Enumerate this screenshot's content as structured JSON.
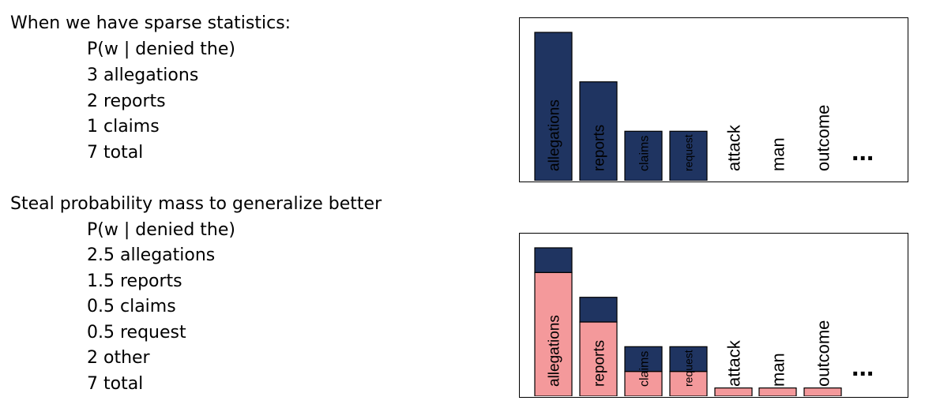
{
  "colors": {
    "bar_dark": "#1f3461",
    "bar_pink": "#f4999b",
    "outline": "#000000"
  },
  "section1": {
    "heading": "When we have sparse statistics:",
    "lines": [
      "P(w | denied the)",
      "3 allegations",
      "2 reports",
      "1 claims",
      "7 total"
    ]
  },
  "section2": {
    "heading": "Steal probability mass to generalize better",
    "lines": [
      "P(w | denied the)",
      "2.5 allegations",
      "1.5 reports",
      "0.5 claims",
      "0.5 request",
      "2 other",
      "7 total"
    ]
  },
  "chart_data": [
    {
      "type": "bar",
      "categories": [
        "allegations",
        "reports",
        "claims",
        "request",
        "attack",
        "man",
        "outcome"
      ],
      "values": [
        3,
        2,
        1,
        1,
        0,
        0,
        0
      ],
      "continuation": "...",
      "ylim": [
        0,
        3
      ]
    },
    {
      "type": "bar",
      "stacked": true,
      "categories": [
        "allegations",
        "reports",
        "claims",
        "request",
        "attack",
        "man",
        "outcome"
      ],
      "series": [
        {
          "values": [
            2.5,
            1.5,
            0.5,
            0.5,
            0.1667,
            0.1667,
            0.1667
          ]
        },
        {
          "values": [
            0.5,
            0.5,
            0.5,
            0.5,
            0,
            0,
            0
          ]
        }
      ],
      "continuation": "...",
      "ylim": [
        0,
        3
      ]
    }
  ]
}
